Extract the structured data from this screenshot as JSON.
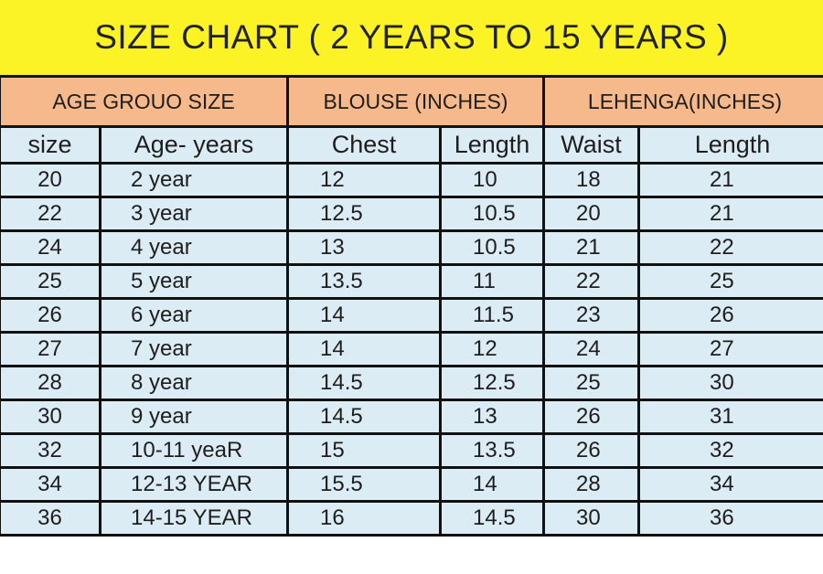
{
  "title": "SIZE CHART ( 2 YEARS TO 15 YEARS )",
  "group_headers": [
    "AGE GROUO SIZE",
    "BLOUSE (INCHES)",
    "LEHENGA(INCHES)"
  ],
  "column_headers": [
    "size",
    "Age- years",
    "Chest",
    "Length",
    "Waist",
    "Length"
  ],
  "rows": [
    [
      "20",
      "2 year",
      "12",
      "10",
      "18",
      "21"
    ],
    [
      "22",
      "3 year",
      "12.5",
      "10.5",
      "20",
      "21"
    ],
    [
      "24",
      "4 year",
      "13",
      "10.5",
      "21",
      "22"
    ],
    [
      "25",
      "5 year",
      "13.5",
      "11",
      "22",
      "25"
    ],
    [
      "26",
      "6 year",
      "14",
      "11.5",
      "23",
      "26"
    ],
    [
      "27",
      "7 year",
      "14",
      "12",
      "24",
      "27"
    ],
    [
      "28",
      "8 year",
      "14.5",
      "12.5",
      "25",
      "30"
    ],
    [
      "30",
      "9 year",
      "14.5",
      "13",
      "26",
      "31"
    ],
    [
      "32",
      "10-11 yeaR",
      "15",
      "13.5",
      "26",
      "32"
    ],
    [
      "34",
      "12-13 YEAR",
      "15.5",
      "14",
      "28",
      "34"
    ],
    [
      "36",
      "14-15 YEAR",
      "16",
      "14.5",
      "30",
      "36"
    ]
  ],
  "colors": {
    "title_bg": "#fbf325",
    "group_header_bg": "#f6b98b",
    "body_bg": "#dcecf4",
    "border": "#111111"
  }
}
